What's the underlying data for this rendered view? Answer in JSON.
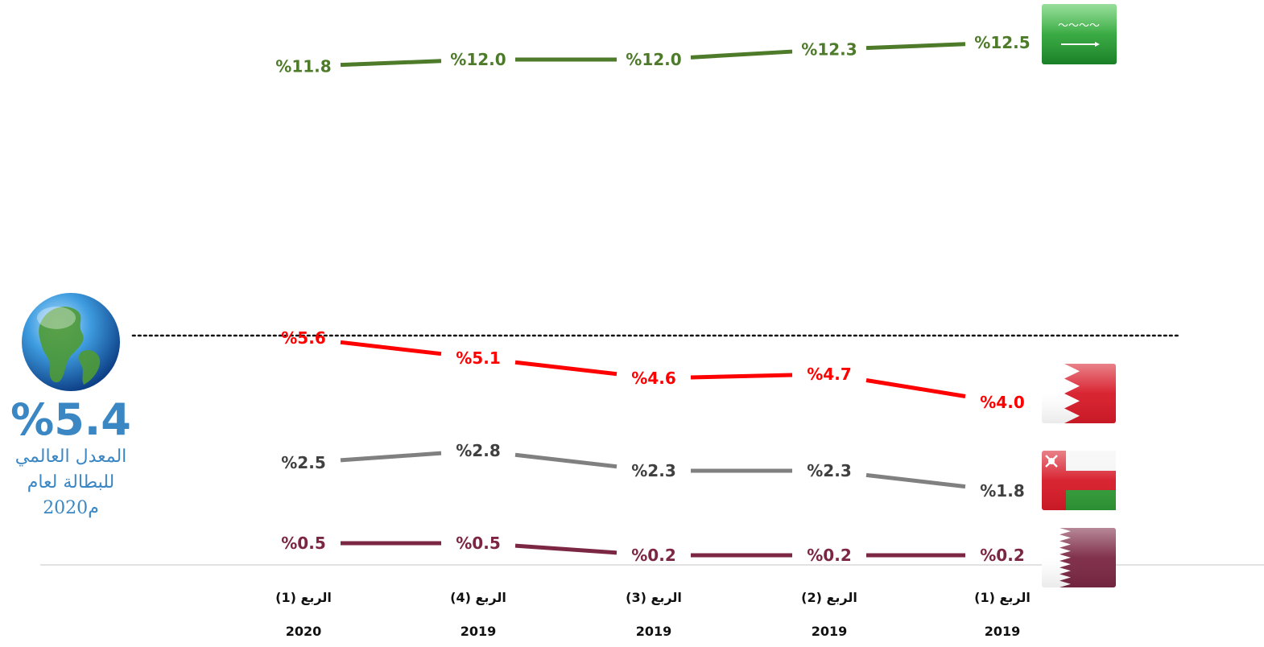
{
  "chart_data": {
    "type": "line",
    "categories": [
      {
        "quarter": "الربع (1)",
        "year": "2019"
      },
      {
        "quarter": "الربع (2)",
        "year": "2019"
      },
      {
        "quarter": "الربع (3)",
        "year": "2019"
      },
      {
        "quarter": "الربع (4)",
        "year": "2019"
      },
      {
        "quarter": "الربع (1)",
        "year": "2020"
      }
    ],
    "value_labels": {
      "sa": [
        "%12.5",
        "%12.3",
        "%12.0",
        "%12.0",
        "%11.8"
      ],
      "bh": [
        "%4.0",
        "%4.7",
        "%4.6",
        "%5.1",
        "%5.6"
      ],
      "om": [
        "%1.8",
        "%2.3",
        "%2.3",
        "%2.8",
        "%2.5"
      ],
      "qa": [
        "%0.2",
        "%0.2",
        "%0.2",
        "%0.5",
        "%0.5"
      ]
    },
    "series": [
      {
        "id": "sa",
        "flag": "saudi-arabia-flag",
        "color": "#4e7b2a",
        "values": [
          12.5,
          12.3,
          12.0,
          12.0,
          11.8
        ]
      },
      {
        "id": "bh",
        "flag": "bahrain-flag",
        "color": "#ff0000",
        "values": [
          4.0,
          4.7,
          4.6,
          5.1,
          5.6
        ]
      },
      {
        "id": "om",
        "flag": "oman-flag",
        "color": "#808080",
        "label_color": "#404040",
        "values": [
          1.8,
          2.3,
          2.3,
          2.8,
          2.5
        ]
      },
      {
        "id": "qa",
        "flag": "qatar-flag",
        "color": "#7b2743",
        "values": [
          0.2,
          0.2,
          0.2,
          0.5,
          0.5
        ]
      }
    ],
    "reference_line": {
      "value": 5.4,
      "style": "dotted",
      "color": "#111111"
    },
    "category_order": "right-to-left",
    "grid": false
  },
  "world": {
    "value_label": "%5.4",
    "label_lines": [
      "المعدل العالمي",
      "للبطالة لعام",
      "2020م"
    ],
    "color": "#3b87c4",
    "icon": "globe-icon"
  }
}
